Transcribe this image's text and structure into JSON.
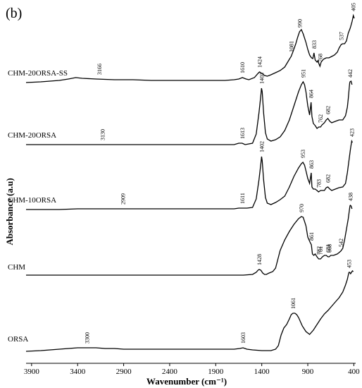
{
  "panel_label": "(b)",
  "chart_data": {
    "type": "line",
    "title": "",
    "xlabel": "Wavenumber (cm⁻¹)",
    "ylabel": "Absorbance (a.u)",
    "xlim": [
      3960,
      380
    ],
    "x_reversed": true,
    "xticks": [
      3900,
      3400,
      2900,
      2400,
      1900,
      1400,
      900,
      400
    ],
    "grid": false,
    "legend": "none",
    "series": [
      {
        "name": "CHM-20ORSA-SS",
        "peak_labels": [
          3166,
          1610,
          1424,
          1081,
          990,
          833,
          768,
          537,
          405
        ],
        "points": [
          [
            3960,
            117
          ],
          [
            3800,
            116
          ],
          [
            3700,
            115
          ],
          [
            3600,
            114
          ],
          [
            3500,
            112
          ],
          [
            3420,
            110
          ],
          [
            3350,
            111
          ],
          [
            3200,
            112
          ],
          [
            3000,
            113
          ],
          [
            2800,
            113
          ],
          [
            2600,
            114
          ],
          [
            2400,
            114
          ],
          [
            2200,
            114
          ],
          [
            2000,
            114
          ],
          [
            1800,
            114
          ],
          [
            1700,
            113
          ],
          [
            1650,
            112
          ],
          [
            1610,
            110
          ],
          [
            1570,
            112
          ],
          [
            1540,
            113
          ],
          [
            1480,
            110
          ],
          [
            1440,
            104
          ],
          [
            1424,
            102
          ],
          [
            1400,
            104
          ],
          [
            1370,
            107
          ],
          [
            1340,
            108
          ],
          [
            1300,
            106
          ],
          [
            1250,
            103
          ],
          [
            1200,
            100
          ],
          [
            1150,
            95
          ],
          [
            1100,
            84
          ],
          [
            1081,
            80
          ],
          [
            1060,
            73
          ],
          [
            1030,
            62
          ],
          [
            1010,
            53
          ],
          [
            990,
            45
          ],
          [
            970,
            42
          ],
          [
            950,
            48
          ],
          [
            920,
            60
          ],
          [
            900,
            70
          ],
          [
            880,
            78
          ],
          [
            860,
            82
          ],
          [
            845,
            83
          ],
          [
            833,
            75
          ],
          [
            820,
            85
          ],
          [
            800,
            88
          ],
          [
            790,
            86
          ],
          [
            780,
            90
          ],
          [
            768,
            94
          ],
          [
            755,
            88
          ],
          [
            730,
            84
          ],
          [
            700,
            82
          ],
          [
            670,
            82
          ],
          [
            640,
            80
          ],
          [
            610,
            78
          ],
          [
            580,
            74
          ],
          [
            560,
            68
          ],
          [
            537,
            63
          ],
          [
            520,
            62
          ],
          [
            500,
            62
          ],
          [
            480,
            58
          ],
          [
            460,
            47
          ],
          [
            440,
            40
          ],
          [
            420,
            31
          ],
          [
            405,
            22
          ],
          [
            395,
            26
          ]
        ]
      },
      {
        "name": "CHM-20ORSA",
        "peak_labels": [
          3130,
          1613,
          1403,
          951,
          864,
          762,
          682,
          442
        ],
        "points": [
          [
            3960,
            205
          ],
          [
            3800,
            205
          ],
          [
            3600,
            205
          ],
          [
            3400,
            205
          ],
          [
            3200,
            205
          ],
          [
            3000,
            205
          ],
          [
            2800,
            205
          ],
          [
            2600,
            205
          ],
          [
            2400,
            205
          ],
          [
            2200,
            205
          ],
          [
            2000,
            205
          ],
          [
            1800,
            205
          ],
          [
            1700,
            205
          ],
          [
            1650,
            203
          ],
          [
            1613,
            203
          ],
          [
            1580,
            205
          ],
          [
            1500,
            203
          ],
          [
            1460,
            190
          ],
          [
            1430,
            160
          ],
          [
            1410,
            135
          ],
          [
            1403,
            125
          ],
          [
            1395,
            130
          ],
          [
            1380,
            160
          ],
          [
            1360,
            188
          ],
          [
            1340,
            197
          ],
          [
            1300,
            200
          ],
          [
            1250,
            198
          ],
          [
            1200,
            194
          ],
          [
            1150,
            185
          ],
          [
            1100,
            170
          ],
          [
            1050,
            150
          ],
          [
            1000,
            130
          ],
          [
            970,
            120
          ],
          [
            951,
            116
          ],
          [
            935,
            120
          ],
          [
            920,
            130
          ],
          [
            900,
            150
          ],
          [
            880,
            163
          ],
          [
            864,
            145
          ],
          [
            855,
            165
          ],
          [
            840,
            175
          ],
          [
            820,
            178
          ],
          [
            800,
            182
          ],
          [
            780,
            180
          ],
          [
            762,
            180
          ],
          [
            745,
            177
          ],
          [
            720,
            174
          ],
          [
            700,
            170
          ],
          [
            682,
            168
          ],
          [
            660,
            172
          ],
          [
            640,
            174
          ],
          [
            600,
            172
          ],
          [
            560,
            170
          ],
          [
            520,
            170
          ],
          [
            490,
            164
          ],
          [
            470,
            152
          ],
          [
            460,
            140
          ],
          [
            450,
            125
          ],
          [
            445,
            118
          ],
          [
            442,
            116
          ],
          [
            430,
            115
          ],
          [
            420,
            120
          ]
        ]
      },
      {
        "name": "CHM-10ORSA",
        "peak_labels": [
          2909,
          1611,
          1402,
          953,
          863,
          783,
          682,
          423
        ],
        "points": [
          [
            3960,
            297
          ],
          [
            3800,
            297
          ],
          [
            3600,
            297
          ],
          [
            3400,
            296
          ],
          [
            3200,
            296
          ],
          [
            3000,
            296
          ],
          [
            2800,
            296
          ],
          [
            2600,
            296
          ],
          [
            2400,
            296
          ],
          [
            2200,
            296
          ],
          [
            2000,
            296
          ],
          [
            1800,
            296
          ],
          [
            1700,
            296
          ],
          [
            1650,
            295
          ],
          [
            1611,
            295
          ],
          [
            1560,
            295
          ],
          [
            1500,
            294
          ],
          [
            1460,
            282
          ],
          [
            1430,
            255
          ],
          [
            1410,
            232
          ],
          [
            1402,
            222
          ],
          [
            1395,
            228
          ],
          [
            1380,
            255
          ],
          [
            1360,
            280
          ],
          [
            1340,
            288
          ],
          [
            1300,
            290
          ],
          [
            1250,
            287
          ],
          [
            1200,
            283
          ],
          [
            1150,
            278
          ],
          [
            1100,
            265
          ],
          [
            1050,
            250
          ],
          [
            1000,
            238
          ],
          [
            970,
            232
          ],
          [
            953,
            230
          ],
          [
            935,
            234
          ],
          [
            920,
            242
          ],
          [
            900,
            253
          ],
          [
            880,
            260
          ],
          [
            863,
            245
          ],
          [
            855,
            265
          ],
          [
            840,
            268
          ],
          [
            820,
            268
          ],
          [
            800,
            270
          ],
          [
            783,
            272
          ],
          [
            760,
            270
          ],
          [
            720,
            270
          ],
          [
            700,
            266
          ],
          [
            682,
            265
          ],
          [
            660,
            268
          ],
          [
            640,
            270
          ],
          [
            600,
            268
          ],
          [
            560,
            266
          ],
          [
            520,
            265
          ],
          [
            490,
            260
          ],
          [
            470,
            245
          ],
          [
            450,
            225
          ],
          [
            435,
            210
          ],
          [
            423,
            200
          ],
          [
            415,
            202
          ]
        ]
      },
      {
        "name": "CHM",
        "peak_labels": [
          1428,
          970,
          861,
          782,
          761,
          681,
          668,
          542,
          438
        ],
        "points": [
          [
            3960,
            390
          ],
          [
            3800,
            390
          ],
          [
            3600,
            390
          ],
          [
            3400,
            390
          ],
          [
            3200,
            390
          ],
          [
            3000,
            390
          ],
          [
            2800,
            390
          ],
          [
            2600,
            390
          ],
          [
            2400,
            390
          ],
          [
            2200,
            390
          ],
          [
            2000,
            390
          ],
          [
            1800,
            390
          ],
          [
            1700,
            390
          ],
          [
            1600,
            390
          ],
          [
            1500,
            389
          ],
          [
            1460,
            386
          ],
          [
            1440,
            383
          ],
          [
            1428,
            382
          ],
          [
            1410,
            383
          ],
          [
            1390,
            387
          ],
          [
            1370,
            389
          ],
          [
            1350,
            389
          ],
          [
            1320,
            387
          ],
          [
            1280,
            385
          ],
          [
            1250,
            380
          ],
          [
            1230,
            370
          ],
          [
            1200,
            355
          ],
          [
            1150,
            340
          ],
          [
            1100,
            328
          ],
          [
            1050,
            318
          ],
          [
            1000,
            310
          ],
          [
            970,
            307
          ],
          [
            950,
            308
          ],
          [
            920,
            320
          ],
          [
            900,
            336
          ],
          [
            880,
            342
          ],
          [
            861,
            347
          ],
          [
            850,
            360
          ],
          [
            835,
            362
          ],
          [
            820,
            360
          ],
          [
            800,
            364
          ],
          [
            782,
            367
          ],
          [
            761,
            367
          ],
          [
            740,
            364
          ],
          [
            720,
            362
          ],
          [
            700,
            362
          ],
          [
            681,
            364
          ],
          [
            668,
            364
          ],
          [
            650,
            362
          ],
          [
            620,
            362
          ],
          [
            600,
            361
          ],
          [
            580,
            360
          ],
          [
            560,
            358
          ],
          [
            542,
            356
          ],
          [
            520,
            352
          ],
          [
            500,
            340
          ],
          [
            480,
            325
          ],
          [
            460,
            310
          ],
          [
            450,
            300
          ],
          [
            442,
            292
          ],
          [
            438,
            291
          ],
          [
            430,
            292
          ],
          [
            420,
            296
          ]
        ]
      },
      {
        "name": "ORSA",
        "peak_labels": [
          3300,
          1603,
          1061,
          453
        ],
        "points": [
          [
            3960,
            498
          ],
          [
            3800,
            497
          ],
          [
            3700,
            496
          ],
          [
            3600,
            495
          ],
          [
            3500,
            494
          ],
          [
            3400,
            493
          ],
          [
            3300,
            493
          ],
          [
            3200,
            493
          ],
          [
            3100,
            494
          ],
          [
            3000,
            494
          ],
          [
            2900,
            495
          ],
          [
            2800,
            495
          ],
          [
            2600,
            495
          ],
          [
            2400,
            495
          ],
          [
            2200,
            495
          ],
          [
            2000,
            495
          ],
          [
            1800,
            495
          ],
          [
            1700,
            495
          ],
          [
            1640,
            494
          ],
          [
            1603,
            493
          ],
          [
            1560,
            495
          ],
          [
            1500,
            496
          ],
          [
            1400,
            497
          ],
          [
            1300,
            497
          ],
          [
            1250,
            495
          ],
          [
            1220,
            490
          ],
          [
            1190,
            475
          ],
          [
            1160,
            465
          ],
          [
            1130,
            460
          ],
          [
            1100,
            452
          ],
          [
            1080,
            446
          ],
          [
            1061,
            444
          ],
          [
            1040,
            444
          ],
          [
            1020,
            446
          ],
          [
            1000,
            450
          ],
          [
            960,
            462
          ],
          [
            920,
            470
          ],
          [
            880,
            474
          ],
          [
            840,
            468
          ],
          [
            800,
            460
          ],
          [
            760,
            452
          ],
          [
            720,
            445
          ],
          [
            680,
            440
          ],
          [
            640,
            434
          ],
          [
            600,
            428
          ],
          [
            560,
            422
          ],
          [
            520,
            414
          ],
          [
            490,
            404
          ],
          [
            470,
            396
          ],
          [
            460,
            390
          ],
          [
            453,
            386
          ],
          [
            445,
            386
          ],
          [
            435,
            388
          ],
          [
            425,
            386
          ],
          [
            415,
            384
          ],
          [
            405,
            385
          ]
        ]
      }
    ]
  }
}
